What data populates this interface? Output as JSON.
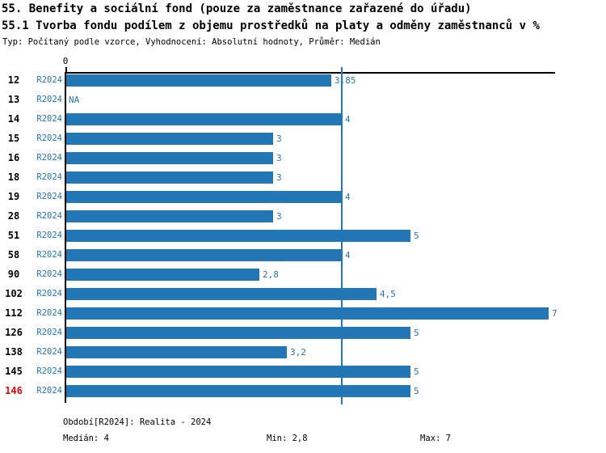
{
  "header": {
    "title_line1": "55. Benefity a sociální fond (pouze za zaměstnance zařazené do úřadu)",
    "title_line2": "55.1 Tvorba fondu podílem z objemu prostředků na platy a odměny zaměstnanců v %",
    "meta_line": "Typ: Počítaný podle vzorce, Vyhodnocení: Absolutní hodnoty, Průměr: Medián"
  },
  "chart_data": {
    "type": "bar",
    "orientation": "horizontal",
    "origin_tick_label": "0",
    "period_label": "R2024",
    "categories": [
      "12",
      "13",
      "14",
      "15",
      "16",
      "18",
      "19",
      "28",
      "51",
      "58",
      "90",
      "102",
      "112",
      "126",
      "138",
      "145",
      "146"
    ],
    "values": [
      3.85,
      null,
      4,
      3,
      3,
      3,
      4,
      3,
      5,
      4,
      2.8,
      4.5,
      7,
      5,
      3.2,
      5,
      5
    ],
    "value_labels": [
      "3,85",
      "NA",
      "4",
      "3",
      "3",
      "3",
      "4",
      "3",
      "5",
      "4",
      "2,8",
      "4,5",
      "7",
      "5",
      "3,2",
      "5",
      "5"
    ],
    "highlighted_category": "146",
    "median_line_value": 4,
    "xlim": [
      0,
      7.1
    ],
    "grid": false,
    "legend": "none",
    "colors": {
      "bar": "#2277b4",
      "value_text": "#2277b4",
      "period_text": "#2277b4",
      "median_line": "#2277b4",
      "highlight_text": "#ee0000",
      "axis": "#000000"
    }
  },
  "footer": {
    "period_info": "Období[R2024]: Realita - 2024",
    "median": "Medián: 4",
    "min": "Min: 2,8",
    "max": "Max: 7"
  }
}
